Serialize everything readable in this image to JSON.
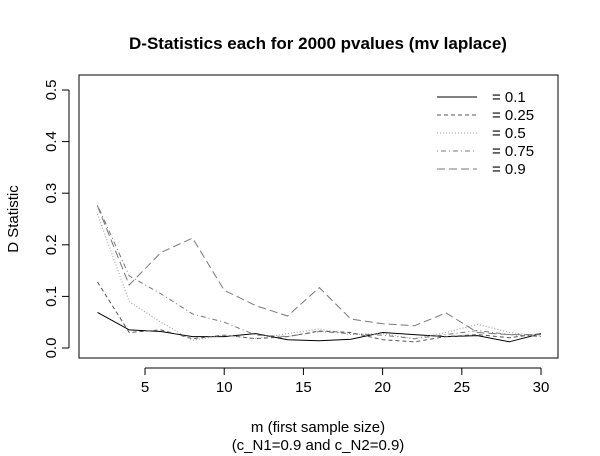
{
  "chart_data": {
    "type": "line",
    "title": "D-Statistics each for 2000 pvalues (mv laplace)",
    "xlabel": "m (first sample size)",
    "xlabel_line2": "(c_N1=0.9 and c_N2=0.9)",
    "ylabel": "D Statistic",
    "xlim": [
      2,
      30
    ],
    "ylim": [
      0,
      0.5
    ],
    "x_ticks": [
      5,
      10,
      15,
      20,
      25,
      30
    ],
    "y_ticks": [
      0.0,
      0.1,
      0.2,
      0.3,
      0.4,
      0.5
    ],
    "y_tick_labels": [
      "0.0",
      "0.1",
      "0.2",
      "0.3",
      "0.4",
      "0.5"
    ],
    "legend_position": "top-right",
    "grid": false,
    "x": [
      2,
      4,
      6,
      8,
      10,
      12,
      14,
      16,
      18,
      20,
      22,
      24,
      26,
      28,
      30
    ],
    "series": [
      {
        "name": "= 0.1",
        "line_style": "solid",
        "color": "#000000",
        "values": [
          0.069,
          0.035,
          0.032,
          0.022,
          0.022,
          0.028,
          0.016,
          0.014,
          0.017,
          0.03,
          0.026,
          0.022,
          0.024,
          0.012,
          0.028
        ]
      },
      {
        "name": "= 0.25",
        "line_style": "dashed",
        "color": "#555555",
        "values": [
          0.128,
          0.03,
          0.035,
          0.018,
          0.025,
          0.018,
          0.022,
          0.033,
          0.03,
          0.016,
          0.012,
          0.022,
          0.026,
          0.02,
          0.028
        ]
      },
      {
        "name": "= 0.5",
        "line_style": "dotted",
        "color": "#999999",
        "values": [
          0.26,
          0.09,
          0.05,
          0.015,
          0.025,
          0.018,
          0.028,
          0.037,
          0.026,
          0.028,
          0.018,
          0.03,
          0.046,
          0.03,
          0.023
        ]
      },
      {
        "name": "= 0.75",
        "line_style": "dotdash",
        "color": "#777777",
        "values": [
          0.277,
          0.14,
          0.105,
          0.066,
          0.05,
          0.025,
          0.022,
          0.032,
          0.028,
          0.025,
          0.018,
          0.026,
          0.034,
          0.026,
          0.022
        ]
      },
      {
        "name": "= 0.9",
        "line_style": "longdash",
        "color": "#777777",
        "values": [
          0.275,
          0.122,
          0.185,
          0.213,
          0.112,
          0.082,
          0.062,
          0.117,
          0.056,
          0.047,
          0.043,
          0.068,
          0.03,
          0.026,
          0.026
        ]
      }
    ]
  }
}
